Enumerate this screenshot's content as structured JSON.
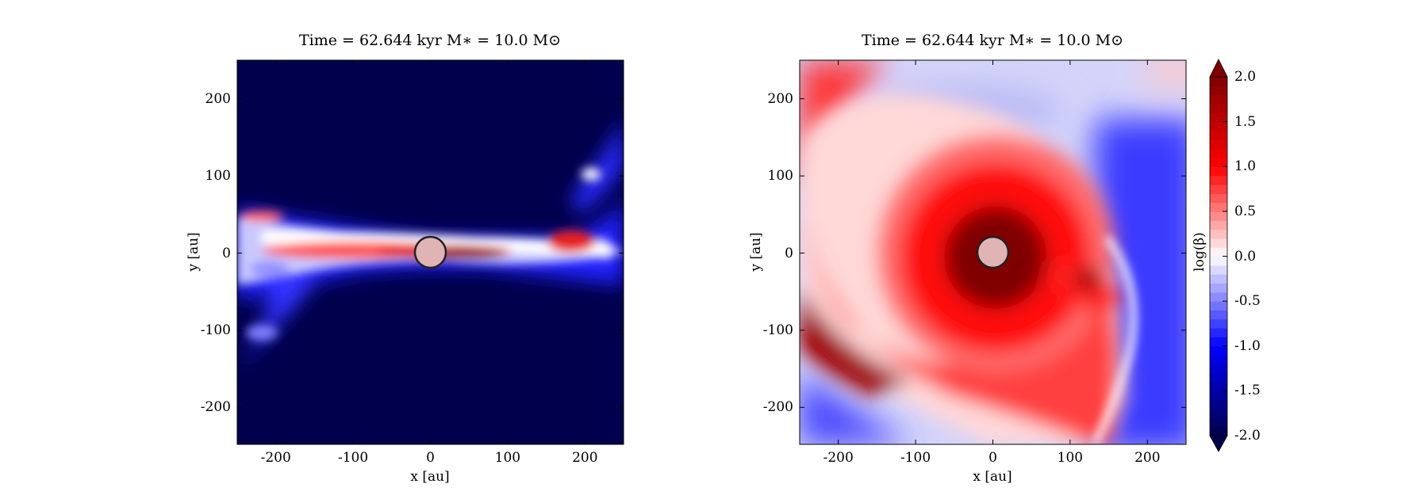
{
  "chart_data": [
    {
      "type": "heatmap",
      "title": "Time = 62.644 kyr    M∗ = 10.0 M⊙",
      "xlabel": "x [au]",
      "ylabel": "y [au]",
      "xlim": [
        -250,
        250
      ],
      "ylim": [
        -250,
        250
      ],
      "xticks": [
        "-200",
        "-100",
        "0",
        "100",
        "200"
      ],
      "yticks": [
        "200",
        "100",
        "0",
        "-100",
        "-200"
      ],
      "star_radius_au": 20,
      "description_of_field": "edge-on view: red disk along y=0, blue outflow cavity walls, saturated navy background"
    },
    {
      "type": "heatmap",
      "title": "Time = 62.644 kyr    M∗ = 10.0 M⊙",
      "xlabel": "x [au]",
      "ylabel": "y [au]",
      "xlim": [
        -250,
        250
      ],
      "ylim": [
        -250,
        250
      ],
      "xticks": [
        "-200",
        "-100",
        "0",
        "100",
        "200"
      ],
      "yticks": [
        "200",
        "100",
        "0",
        "-100",
        "-200"
      ],
      "star_radius_au": 20
    }
  ],
  "colorbar": {
    "label": "log(β)",
    "range": [
      -2.0,
      2.0
    ],
    "levels": 40,
    "ticks": [
      "2.0",
      "1.5",
      "1.0",
      "0.5",
      "0.0",
      "-0.5",
      "-1.0",
      "-1.5",
      "-2.0"
    ],
    "tick_values": [
      2.0,
      1.5,
      1.0,
      0.5,
      0.0,
      -0.5,
      -1.0,
      -1.5,
      -2.0
    ],
    "extend": "both",
    "colormap": [
      "#00004c",
      "#0000ff",
      "#ffffff",
      "#ff0000",
      "#800000"
    ]
  }
}
